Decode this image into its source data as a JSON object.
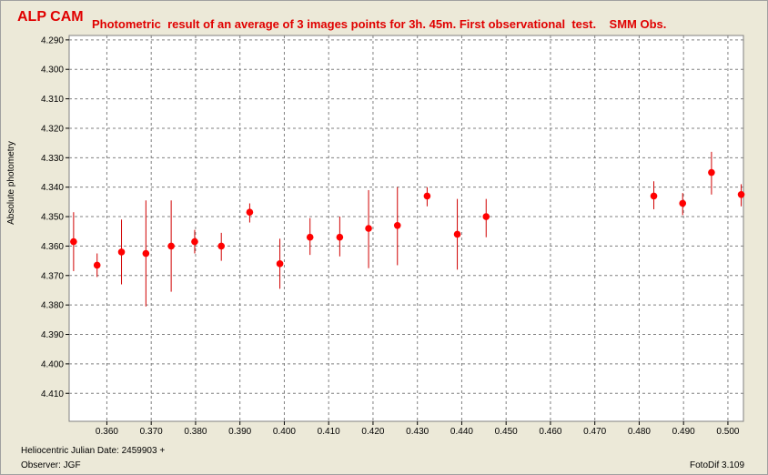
{
  "header": {
    "star_name": "ALP CAM",
    "description": "Photometric  result of an average of 3 images points for 3h. 45m. First observational  test.    SMM Obs."
  },
  "footer": {
    "date_label": "Heliocentric Julian Date: 2459903 +",
    "observer": "Observer: JGF",
    "software": "FotoDif 3.109"
  },
  "colors": {
    "point": "#ff0000",
    "errorbar": "#d00000",
    "grid": "#808080",
    "plot_bg": "#ffffff",
    "title": "#e00000"
  },
  "chart_data": {
    "type": "scatter",
    "ylabel": "Absolute photometry",
    "xlabel": "Heliocentric Julian Date: 2459903 +",
    "xlim": [
      0.3515,
      0.5035
    ],
    "ylim": [
      4.2885,
      4.4195
    ],
    "y_inverted": true,
    "grid": true,
    "x_ticks": [
      0.36,
      0.37,
      0.38,
      0.39,
      0.4,
      0.41,
      0.42,
      0.43,
      0.44,
      0.45,
      0.46,
      0.47,
      0.48,
      0.49,
      0.5
    ],
    "x_tick_labels": [
      "0.360",
      "0.370",
      "0.380",
      "0.390",
      "0.400",
      "0.410",
      "0.420",
      "0.430",
      "0.440",
      "0.450",
      "0.460",
      "0.470",
      "0.480",
      "0.490",
      "0.500"
    ],
    "y_ticks": [
      4.29,
      4.3,
      4.31,
      4.32,
      4.33,
      4.34,
      4.35,
      4.36,
      4.37,
      4.38,
      4.39,
      4.4,
      4.41
    ],
    "y_tick_labels": [
      "4.290",
      "4.300",
      "4.310",
      "4.320",
      "4.330",
      "4.340",
      "4.350",
      "4.360",
      "4.370",
      "4.380",
      "4.390",
      "4.400",
      "4.410"
    ],
    "points": [
      {
        "x": 0.3525,
        "y": 4.3585,
        "err_low": 4.3485,
        "err_high": 4.3685
      },
      {
        "x": 0.3578,
        "y": 4.3665,
        "err_low": 4.3625,
        "err_high": 4.3705
      },
      {
        "x": 0.3633,
        "y": 4.362,
        "err_low": 4.351,
        "err_high": 4.373
      },
      {
        "x": 0.3688,
        "y": 4.3625,
        "err_low": 4.3445,
        "err_high": 4.3805
      },
      {
        "x": 0.3745,
        "y": 4.36,
        "err_low": 4.3445,
        "err_high": 4.3755
      },
      {
        "x": 0.3798,
        "y": 4.3585,
        "err_low": 4.3545,
        "err_high": 4.3625
      },
      {
        "x": 0.3858,
        "y": 4.36,
        "err_low": 4.3555,
        "err_high": 4.365
      },
      {
        "x": 0.3922,
        "y": 4.3485,
        "err_low": 4.3455,
        "err_high": 4.352
      },
      {
        "x": 0.399,
        "y": 4.366,
        "err_low": 4.3575,
        "err_high": 4.3745
      },
      {
        "x": 0.4058,
        "y": 4.357,
        "err_low": 4.3505,
        "err_high": 4.363
      },
      {
        "x": 0.4125,
        "y": 4.357,
        "err_low": 4.35,
        "err_high": 4.3635
      },
      {
        "x": 0.419,
        "y": 4.354,
        "err_low": 4.341,
        "err_high": 4.3675
      },
      {
        "x": 0.4255,
        "y": 4.353,
        "err_low": 4.34,
        "err_high": 4.3665
      },
      {
        "x": 0.4322,
        "y": 4.343,
        "err_low": 4.34,
        "err_high": 4.3465
      },
      {
        "x": 0.439,
        "y": 4.356,
        "err_low": 4.344,
        "err_high": 4.368
      },
      {
        "x": 0.4455,
        "y": 4.35,
        "err_low": 4.344,
        "err_high": 4.357
      },
      {
        "x": 0.4833,
        "y": 4.343,
        "err_low": 4.338,
        "err_high": 4.3475
      },
      {
        "x": 0.4898,
        "y": 4.3455,
        "err_low": 4.342,
        "err_high": 4.3495
      },
      {
        "x": 0.4963,
        "y": 4.335,
        "err_low": 4.328,
        "err_high": 4.3425
      },
      {
        "x": 0.503,
        "y": 4.3425,
        "err_low": 4.339,
        "err_high": 4.3465
      }
    ]
  }
}
